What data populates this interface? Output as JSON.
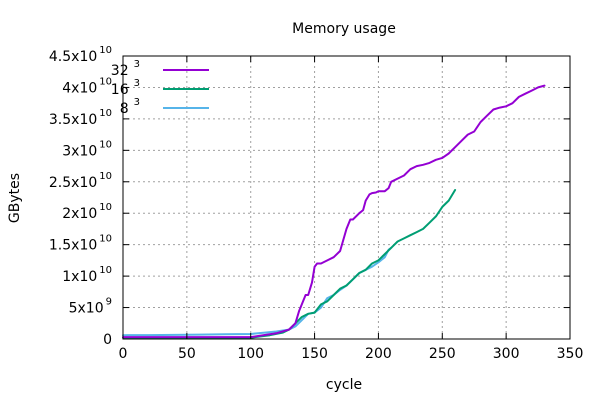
{
  "chart_data": {
    "type": "line",
    "title": "Memory usage",
    "xlabel": "cycle",
    "ylabel": "GBytes",
    "xlim": [
      0,
      350
    ],
    "ylim": [
      0,
      45000000000
    ],
    "grid": true,
    "legend_position": "top-left",
    "x_ticks": [
      "0",
      "50",
      "100",
      "150",
      "200",
      "250",
      "300",
      "350"
    ],
    "y_ticks": [
      {
        "value": 0,
        "mantissa": "0",
        "exponent": ""
      },
      {
        "value": 5000000000,
        "mantissa": "5x10",
        "exponent": "9"
      },
      {
        "value": 10000000000,
        "mantissa": "1x10",
        "exponent": "10"
      },
      {
        "value": 15000000000,
        "mantissa": "1.5x10",
        "exponent": "10"
      },
      {
        "value": 20000000000,
        "mantissa": "2x10",
        "exponent": "10"
      },
      {
        "value": 25000000000,
        "mantissa": "2.5x10",
        "exponent": "10"
      },
      {
        "value": 30000000000,
        "mantissa": "3x10",
        "exponent": "10"
      },
      {
        "value": 35000000000,
        "mantissa": "3.5x10",
        "exponent": "10"
      },
      {
        "value": 40000000000,
        "mantissa": "4x10",
        "exponent": "10"
      },
      {
        "value": 45000000000,
        "mantissa": "4.5x10",
        "exponent": "10"
      }
    ],
    "series": [
      {
        "name": "32",
        "name_exp": "3",
        "color": "#9400d3",
        "x": [
          0,
          100,
          120,
          130,
          135,
          138,
          140,
          143,
          145,
          148,
          150,
          152,
          155,
          160,
          165,
          170,
          175,
          178,
          180,
          185,
          188,
          190,
          193,
          195,
          198,
          200,
          205,
          208,
          210,
          215,
          220,
          225,
          230,
          235,
          240,
          245,
          250,
          255,
          260,
          265,
          270,
          275,
          280,
          285,
          290,
          295,
          300,
          305,
          310,
          315,
          320,
          325,
          330
        ],
        "y": [
          300000000,
          300000000,
          900000000,
          1500000000,
          2500000000,
          4500000000,
          5500000000,
          7000000000,
          7000000000,
          9000000000,
          11500000000,
          12000000000,
          12000000000,
          12500000000,
          13000000000,
          14000000000,
          17500000000,
          19000000000,
          19000000000,
          20000000000,
          20500000000,
          22000000000,
          23000000000,
          23200000000,
          23300000000,
          23500000000,
          23500000000,
          24000000000,
          25000000000,
          25500000000,
          26000000000,
          27000000000,
          27500000000,
          27700000000,
          28000000000,
          28500000000,
          28800000000,
          29500000000,
          30500000000,
          31500000000,
          32500000000,
          33000000000,
          34500000000,
          35500000000,
          36500000000,
          36800000000,
          37000000000,
          37500000000,
          38500000000,
          39000000000,
          39500000000,
          40000000000,
          40300000000
        ]
      },
      {
        "name": "16",
        "name_exp": "3",
        "color": "#009e73",
        "x": [
          0,
          100,
          115,
          125,
          130,
          135,
          140,
          145,
          150,
          155,
          160,
          165,
          170,
          175,
          180,
          185,
          190,
          195,
          200,
          205,
          210,
          215,
          220,
          225,
          230,
          235,
          240,
          245,
          250,
          255,
          260
        ],
        "y": [
          200000000,
          200000000,
          600000000,
          1000000000,
          1500000000,
          2500000000,
          3500000000,
          4000000000,
          4200000000,
          5500000000,
          6000000000,
          7000000000,
          8000000000,
          8500000000,
          9500000000,
          10500000000,
          11000000000,
          12000000000,
          12500000000,
          13500000000,
          14500000000,
          15500000000,
          16000000000,
          16500000000,
          17000000000,
          17500000000,
          18500000000,
          19500000000,
          21000000000,
          22000000000,
          23700000000
        ]
      },
      {
        "name": "8",
        "name_exp": "3",
        "color": "#56b4e9",
        "x": [
          0,
          20,
          40,
          60,
          80,
          100,
          110,
          120,
          130,
          135,
          140,
          145,
          150,
          155,
          160,
          165,
          170,
          175,
          180,
          185,
          190,
          195,
          200,
          205,
          208,
          210
        ],
        "y": [
          600000000,
          620000000,
          650000000,
          700000000,
          750000000,
          800000000,
          1000000000,
          1200000000,
          1500000000,
          2000000000,
          3000000000,
          4000000000,
          4200000000,
          5000000000,
          6500000000,
          7000000000,
          7800000000,
          8500000000,
          9500000000,
          10500000000,
          11000000000,
          11500000000,
          12200000000,
          13000000000,
          14200000000,
          14500000000
        ]
      }
    ]
  }
}
